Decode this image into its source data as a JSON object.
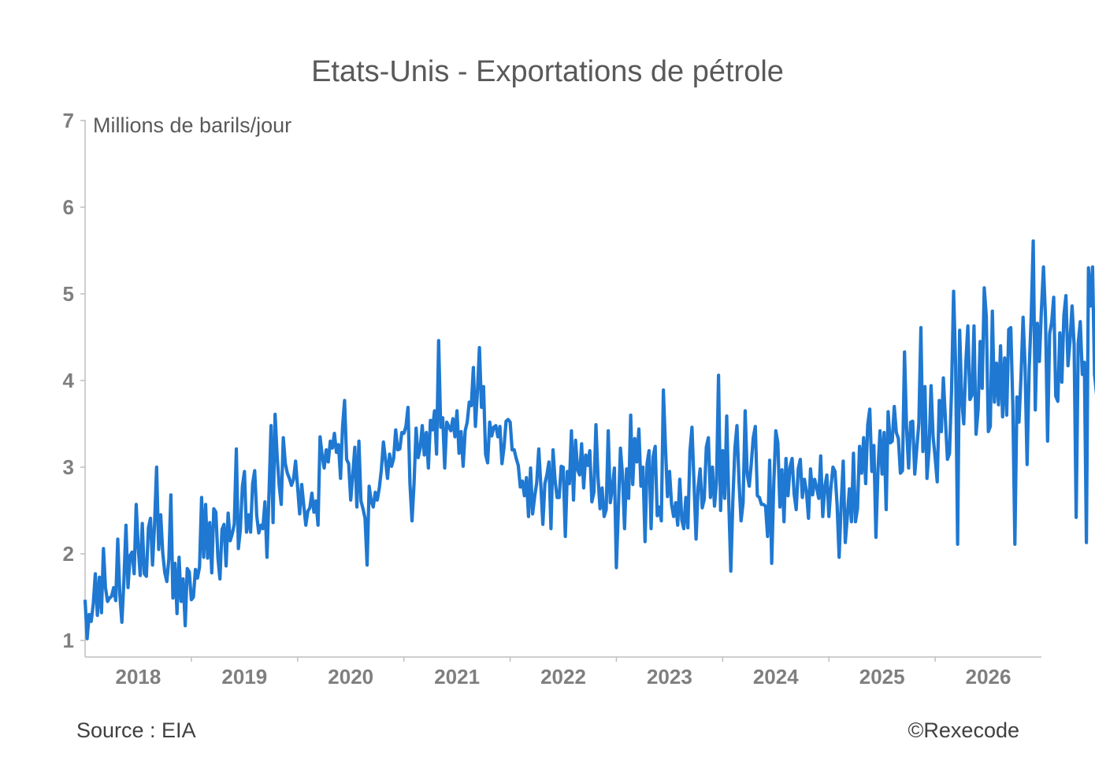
{
  "chart_data": {
    "type": "line",
    "title": "Etats-Unis - Exportations de pétrole",
    "ylabel": "Millions de barils/jour",
    "xlabel": "",
    "ylim": [
      1,
      7
    ],
    "xlim": [
      2017.5,
      2026.5
    ],
    "yticks": [
      "1",
      "2",
      "3",
      "4",
      "5",
      "6",
      "7"
    ],
    "xticks": [
      "2018",
      "2019",
      "2020",
      "2021",
      "2022",
      "2023",
      "2024",
      "2025",
      "2026"
    ],
    "grid": false,
    "legend": "none",
    "series": [
      {
        "color": "#1f78d1",
        "frequency": "weekly",
        "start": 2017.5,
        "values": [
          1.47,
          1.02,
          1.3,
          1.22,
          1.42,
          1.77,
          1.29,
          1.73,
          1.32,
          2.06,
          1.61,
          1.45,
          1.49,
          1.51,
          1.61,
          1.46,
          2.17,
          1.53,
          1.21,
          1.69,
          2.33,
          1.61,
          1.98,
          2.02,
          1.77,
          2.57,
          2.08,
          1.75,
          2.35,
          1.77,
          1.74,
          2.3,
          2.41,
          1.87,
          2.34,
          3.0,
          2.05,
          2.45,
          2.01,
          1.78,
          1.68,
          1.95,
          2.68,
          1.49,
          1.89,
          1.31,
          1.96,
          1.45,
          1.71,
          1.17,
          1.83,
          1.79,
          1.47,
          1.5,
          1.82,
          1.72,
          1.85,
          2.65,
          1.96,
          2.57,
          1.95,
          2.36,
          1.78,
          2.52,
          2.48,
          1.96,
          1.71,
          2.28,
          2.34,
          1.86,
          2.47,
          2.15,
          2.23,
          2.34,
          3.21,
          2.06,
          2.28,
          2.78,
          2.95,
          2.25,
          2.45,
          2.25,
          2.81,
          2.96,
          2.44,
          2.24,
          2.33,
          2.29,
          2.6,
          1.96,
          2.7,
          3.48,
          2.36,
          3.61,
          3.13,
          2.79,
          2.57,
          3.34,
          3.04,
          2.93,
          2.87,
          2.79,
          2.86,
          3.07,
          2.77,
          2.46,
          2.8,
          2.56,
          2.33,
          2.49,
          2.53,
          2.7,
          2.48,
          2.61,
          2.33,
          3.35,
          3.14,
          2.99,
          3.2,
          3.06,
          3.3,
          3.22,
          3.39,
          3.17,
          3.26,
          2.87,
          3.46,
          3.77,
          3.09,
          3.04,
          2.62,
          2.91,
          3.23,
          2.54,
          3.3,
          2.61,
          2.52,
          2.41,
          1.87,
          2.78,
          2.61,
          2.54,
          2.71,
          2.62,
          2.76,
          2.97,
          3.29,
          3.09,
          2.87,
          3.15,
          3.01,
          3.1,
          3.43,
          3.2,
          3.21,
          3.4,
          3.39,
          3.47,
          3.69,
          2.81,
          2.38,
          2.81,
          3.45,
          3.11,
          3.22,
          3.48,
          3.14,
          3.4,
          2.99,
          3.54,
          3.43,
          3.65,
          3.15,
          4.46,
          3.46,
          3.57,
          2.99,
          3.52,
          3.47,
          3.42,
          3.56,
          3.35,
          3.65,
          3.16,
          3.41,
          3.01,
          3.42,
          3.52,
          3.75,
          3.71,
          4.15,
          3.47,
          3.88,
          4.38,
          3.69,
          3.93,
          3.15,
          3.05,
          3.52,
          3.36,
          3.46,
          3.48,
          3.35,
          3.47,
          3.04,
          3.23,
          3.53,
          3.55,
          3.52,
          3.2,
          3.2,
          3.1,
          3.02,
          2.77,
          2.84,
          2.67,
          2.88,
          2.43,
          2.99,
          2.46,
          2.66,
          2.82,
          3.21,
          2.8,
          2.34,
          2.81,
          2.91,
          3.06,
          2.29,
          3.2,
          2.85,
          2.65,
          2.65,
          3.01,
          3.0,
          2.2,
          2.95,
          2.81,
          3.42,
          2.62,
          3.31,
          2.97,
          2.91,
          3.27,
          2.76,
          3.14,
          3.02,
          3.19,
          2.6,
          2.71,
          3.49,
          2.89,
          2.52,
          2.76,
          2.43,
          2.51,
          3.42,
          2.59,
          2.76,
          2.99,
          1.84,
          2.53,
          3.22,
          2.91,
          2.29,
          2.98,
          2.64,
          3.6,
          2.8,
          3.33,
          3.06,
          3.44,
          2.78,
          3.0,
          2.14,
          3.04,
          3.19,
          2.29,
          3.12,
          3.24,
          2.44,
          2.54,
          2.38,
          3.89,
          3.24,
          2.66,
          2.95,
          2.57,
          2.43,
          2.59,
          2.33,
          2.86,
          2.39,
          2.29,
          2.65,
          2.3,
          3.18,
          3.46,
          2.81,
          2.17,
          2.77,
          2.98,
          2.53,
          2.63,
          3.23,
          3.34,
          2.65,
          3.0,
          2.55,
          2.84,
          4.06,
          2.5,
          3.19,
          2.64,
          3.59,
          2.61,
          1.8,
          2.62,
          3.22,
          3.48,
          2.84,
          2.38,
          2.59,
          3.65,
          2.92,
          2.78,
          3.03,
          3.34,
          3.47,
          2.67,
          2.65,
          2.57,
          2.57,
          2.55,
          2.2,
          3.08,
          1.89,
          2.8,
          3.42,
          3.28,
          2.54,
          2.97,
          2.37,
          3.1,
          2.67,
          3.0,
          3.1,
          2.69,
          2.51,
          2.98,
          3.09,
          2.65,
          2.86,
          2.72,
          2.41,
          2.98,
          2.68,
          2.86,
          2.76,
          2.64,
          3.13,
          2.43,
          2.77,
          2.91,
          2.43,
          2.77,
          3.0,
          2.95,
          2.57,
          1.96,
          2.58,
          3.07,
          2.13,
          2.43,
          2.75,
          2.37,
          3.16,
          2.37,
          2.52,
          3.24,
          2.93,
          3.34,
          2.81,
          3.49,
          3.67,
          2.95,
          3.25,
          2.19,
          2.97,
          3.42,
          2.92,
          3.4,
          2.51,
          3.64,
          3.28,
          3.3,
          3.7,
          3.4,
          3.33,
          2.93,
          2.96,
          4.33,
          3.45,
          2.99,
          3.52,
          3.53,
          2.92,
          3.22,
          3.51,
          4.61,
          3.18,
          3.93,
          2.87,
          3.2,
          3.94,
          3.35,
          3.11,
          2.83,
          3.77,
          3.41,
          4.03,
          3.55,
          3.09,
          3.16,
          3.88,
          5.03,
          4.17,
          2.11,
          4.58,
          3.78,
          3.5,
          4.2,
          4.63,
          3.78,
          3.83,
          4.63,
          3.38,
          3.66,
          4.45,
          3.91,
          5.07,
          4.74,
          3.41,
          3.47,
          4.8,
          3.75,
          4.2,
          3.72,
          4.4,
          3.58,
          4.26,
          3.6,
          4.59,
          4.61,
          3.71,
          2.11,
          3.81,
          3.52,
          4.05,
          4.73,
          4.17,
          3.03,
          4.12,
          4.73,
          5.61,
          3.66,
          4.66,
          4.22,
          4.82,
          5.31,
          4.72,
          3.3,
          4.54,
          4.67,
          4.96,
          3.82,
          3.76,
          4.55,
          3.98,
          4.75,
          4.98,
          4.17,
          4.46,
          4.86,
          4.41,
          2.42,
          4.43,
          4.68,
          4.07,
          4.21,
          2.13,
          5.3,
          4.86,
          5.31,
          4.07,
          3.84,
          4.55,
          3.64,
          4.34,
          2.31,
          4.37,
          4.13,
          4.66,
          4.74,
          4.93,
          3.73,
          3.12,
          4.93,
          4.07,
          5.08,
          4.96,
          4.87,
          4.42,
          3.04,
          5.3,
          4.88,
          4.6,
          4.98,
          4.89,
          4.85,
          4.8,
          4.96,
          4.85,
          4.57,
          4.82,
          4.91,
          4.81,
          3.62,
          3.75,
          3.94,
          4.36,
          4.27,
          4.63,
          4.26,
          3.75,
          4.06,
          3.88,
          4.27,
          2.8,
          4.95,
          3.62,
          3.66,
          3.06,
          4.6,
          4.14,
          4.13,
          3.41,
          3.59,
          4.6,
          4.63,
          4.61,
          2.58,
          4.38,
          4.78,
          4.88,
          4.07,
          4.49,
          4.31,
          3.95,
          4.35,
          4.26,
          4.06,
          4.15,
          4.3,
          3.95,
          3.87,
          4.33,
          3.63,
          4.42,
          3.93,
          4.22,
          4.6,
          3.73,
          3.08,
          3.56,
          3.99,
          4.32,
          3.81,
          3.92,
          3.71,
          3.75,
          3.77,
          3.85,
          3.86,
          3.78,
          3.69,
          3.89,
          4.21,
          3.95,
          4.01,
          3.87,
          3.58,
          3.43,
          3.88,
          4.3,
          3.67,
          4.63,
          2.94,
          3.7,
          4.1,
          3.94,
          3.34,
          4.72,
          3.81,
          3.74,
          4.28,
          3.6,
          4.32,
          3.1,
          3.74,
          3.87,
          4.21,
          4.6,
          3.58,
          4.02,
          4.27,
          4.12,
          3.8,
          3.67,
          4.27,
          4.13,
          3.87,
          3.96,
          3.32,
          3.76,
          4.65,
          4.58,
          3.9,
          3.59,
          3.44,
          4.04,
          4.61,
          4.31,
          3.94,
          3.98,
          3.93,
          3.35,
          4.61,
          4.19,
          3.7,
          3.68,
          3.38,
          3.31,
          3.58,
          4.21,
          3.98,
          3.63,
          4.09,
          3.2,
          3.97,
          3.61,
          4.25,
          4.17,
          3.42,
          4.26,
          4.08,
          2.98,
          3.49,
          2.82,
          3.82,
          3.79,
          3.06,
          2.96,
          2.37,
          4.64,
          3.66,
          3.17,
          3.3,
          2.34,
          3.54,
          3.17,
          3.66,
          3.46,
          2.75,
          4.0,
          3.5,
          3.6,
          3.75,
          4.03,
          3.8,
          3.98,
          3.56,
          3.29,
          3.39,
          3.45,
          3.77,
          2.76,
          3.93,
          3.28,
          4.25,
          5.27,
          3.51,
          3.82,
          4.35,
          3.28,
          4.21,
          3.66,
          3.67,
          3.13,
          3.78,
          2.69,
          4.46,
          4.29,
          2.78,
          3.94,
          3.75,
          3.27,
          3.75,
          4.19,
          3.47,
          3.21,
          3.64,
          4.21,
          3.47,
          3.52,
          3.73,
          3.31,
          3.91,
          3.52,
          2.82,
          3.86,
          4.22,
          4.35,
          3.49,
          3.39,
          3.79,
          3.97,
          4.05,
          4.22,
          3.87,
          3.32,
          3.79,
          4.03,
          4.18,
          4.71,
          3.63,
          3.46,
          3.77,
          3.59,
          3.95,
          3.76,
          3.58,
          4.45,
          3.9,
          3.5,
          3.93,
          4.31,
          3.47,
          3.71,
          3.57,
          3.84,
          3.53,
          3.46,
          3.82,
          4.14,
          4.08,
          3.26,
          3.81,
          4.37,
          4.1,
          3.88,
          4.17,
          4.3,
          4.07,
          3.59,
          3.7,
          3.86,
          3.93,
          4.21,
          3.31,
          4.26,
          4.61,
          3.65,
          3.59,
          3.44,
          4.11,
          4.6,
          3.85,
          4.03,
          3.46,
          4.35,
          3.49,
          4.08,
          4.74,
          3.75,
          4.13,
          4.26,
          4.25,
          3.42,
          5.23,
          3.91,
          4.58,
          3.93,
          3.79,
          6.45,
          5.06,
          5.29,
          4.92,
          4.82
        ]
      }
    ],
    "source": "Source : EIA",
    "copyright": "©Rexecode"
  }
}
